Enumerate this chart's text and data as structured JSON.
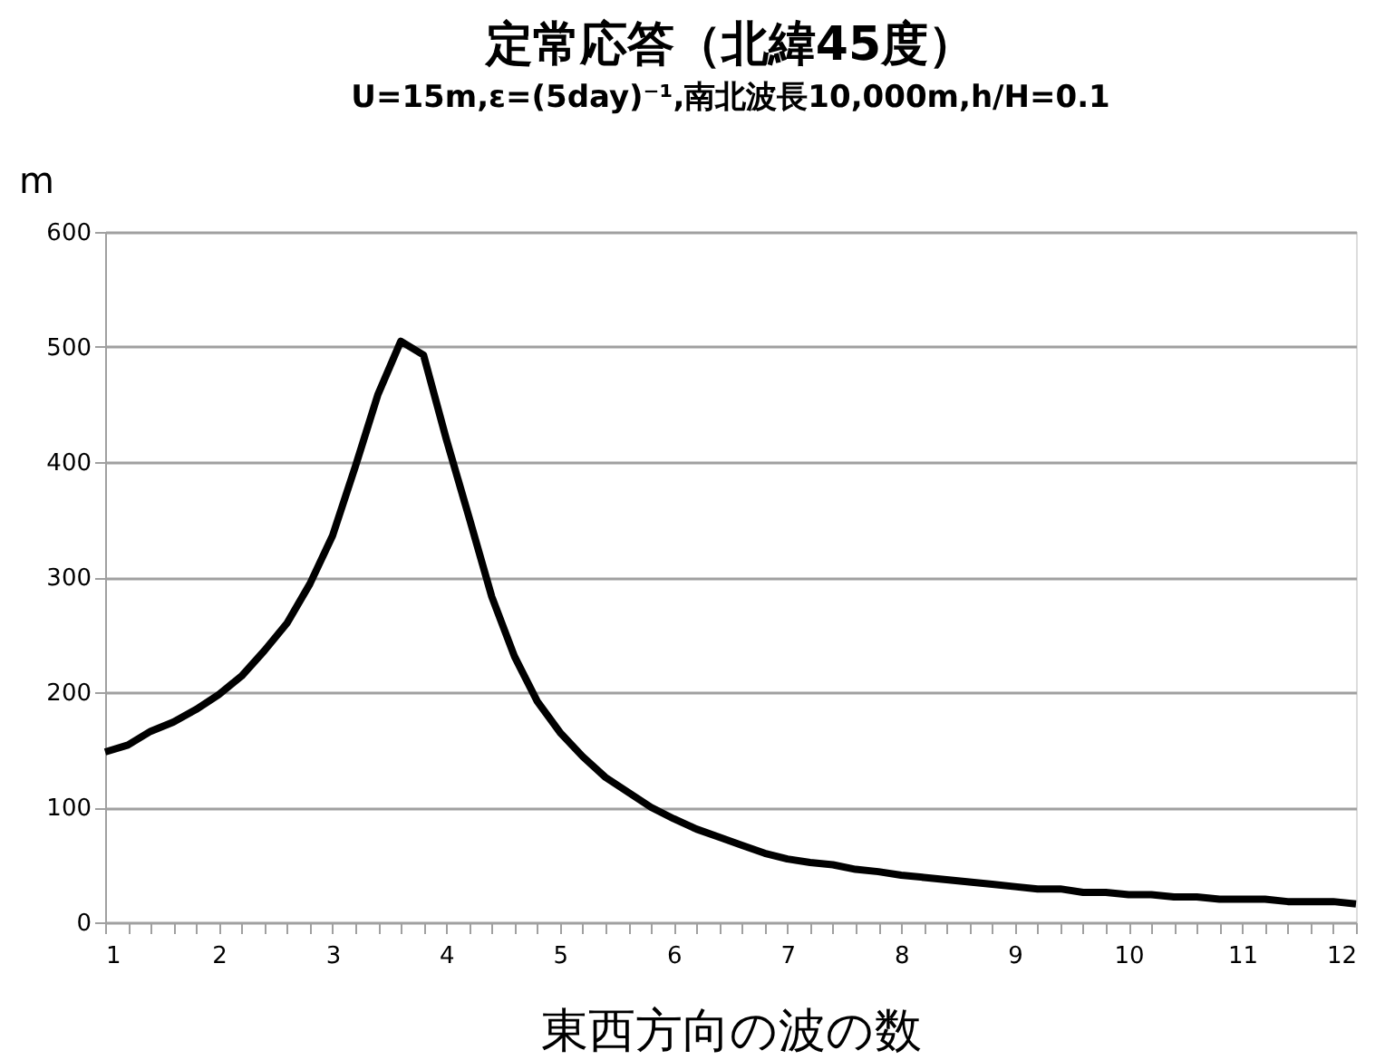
{
  "chart_data": {
    "type": "line",
    "title": "定常応答（北緯45度）",
    "subtitle": "U=15m,ε=(5day)⁻¹,南北波長10,000m,h/H=0.1",
    "xlabel": "東西方向の波の数",
    "ylabel": "m",
    "x": [
      1.0,
      1.2,
      1.4,
      1.6,
      1.8,
      2.0,
      2.2,
      2.4,
      2.6,
      2.8,
      3.0,
      3.2,
      3.4,
      3.6,
      3.8,
      4.0,
      4.2,
      4.4,
      4.6,
      4.8,
      5.0,
      5.2,
      5.4,
      5.6,
      5.8,
      6.0,
      6.2,
      6.4,
      6.6,
      6.8,
      7.0,
      7.2,
      7.4,
      7.6,
      7.8,
      8.0,
      8.2,
      8.4,
      8.6,
      8.8,
      9.0,
      9.2,
      9.4,
      9.6,
      9.8,
      10.0,
      10.2,
      10.4,
      10.6,
      10.8,
      11.0,
      11.2,
      11.4,
      11.6,
      11.8,
      12.0
    ],
    "series": [
      {
        "color": "#000000",
        "values": [
          148,
          154,
          166,
          174,
          185,
          198,
          214,
          236,
          260,
          294,
          336,
          396,
          459,
          505,
          493,
          420,
          352,
          283,
          231,
          192,
          165,
          144,
          126,
          113,
          100,
          90,
          81,
          74,
          67,
          60,
          55,
          52,
          50,
          46,
          44,
          41,
          39,
          37,
          35,
          33,
          31,
          29,
          29,
          26,
          26,
          24,
          24,
          22,
          22,
          20,
          20,
          20,
          18,
          18,
          18,
          16
        ]
      }
    ],
    "xlim": [
      1,
      12
    ],
    "xticks": [
      1,
      {
        "value": 1.2,
        "label": null
      },
      {
        "value": 1.4,
        "label": null
      },
      {
        "value": 1.6,
        "label": null
      },
      {
        "value": 1.8,
        "label": null
      },
      2,
      {
        "value": 2.2,
        "label": null
      },
      {
        "value": 2.4,
        "label": null
      },
      {
        "value": 2.6,
        "label": null
      },
      {
        "value": 2.8,
        "label": null
      },
      3,
      {
        "value": 3.2,
        "label": null
      },
      {
        "value": 3.4,
        "label": null
      },
      {
        "value": 3.6,
        "label": null
      },
      {
        "value": 3.8,
        "label": null
      },
      4,
      {
        "value": 4.2,
        "label": null
      },
      {
        "value": 4.4,
        "label": null
      },
      {
        "value": 4.6,
        "label": null
      },
      {
        "value": 4.8,
        "label": null
      },
      5,
      {
        "value": 5.2,
        "label": null
      },
      {
        "value": 5.4,
        "label": null
      },
      {
        "value": 5.6,
        "label": null
      },
      {
        "value": 5.8,
        "label": null
      },
      6,
      {
        "value": 6.2,
        "label": null
      },
      {
        "value": 6.4,
        "label": null
      },
      {
        "value": 6.6,
        "label": null
      },
      {
        "value": 6.8,
        "label": null
      },
      7,
      {
        "value": 7.2,
        "label": null
      },
      {
        "value": 7.4,
        "label": null
      },
      {
        "value": 7.6,
        "label": null
      },
      {
        "value": 7.8,
        "label": null
      },
      8,
      {
        "value": 8.2,
        "label": null
      },
      {
        "value": 8.4,
        "label": null
      },
      {
        "value": 8.6,
        "label": null
      },
      {
        "value": 8.8,
        "label": null
      },
      9,
      {
        "value": 9.2,
        "label": null
      },
      {
        "value": 9.4,
        "label": null
      },
      {
        "value": 9.6,
        "label": null
      },
      {
        "value": 9.8,
        "label": null
      },
      10,
      {
        "value": 10.2,
        "label": null
      },
      {
        "value": 10.4,
        "label": null
      },
      {
        "value": 10.6,
        "label": null
      },
      {
        "value": 10.8,
        "label": null
      },
      11,
      {
        "value": 11.2,
        "label": null
      },
      {
        "value": 11.4,
        "label": null
      },
      {
        "value": 11.6,
        "label": null
      },
      {
        "value": 11.8,
        "label": null
      },
      12
    ],
    "ylim": [
      0,
      600
    ],
    "yticks": [
      0,
      100,
      200,
      300,
      400,
      500,
      600
    ],
    "grid": "y",
    "legend": false,
    "marker": "none",
    "line_style": "solid"
  }
}
